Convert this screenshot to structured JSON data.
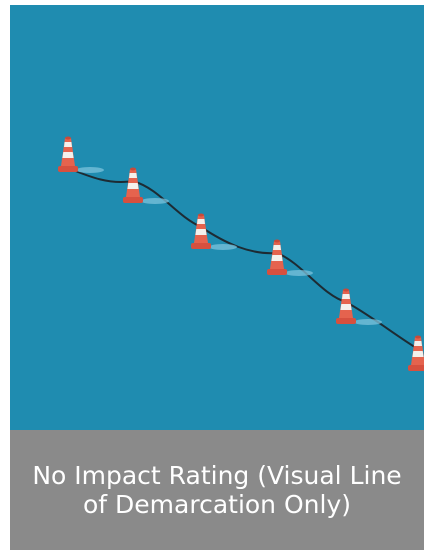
{
  "caption": "No Impact Rating (Visual Line of Demarcation Only)"
}
